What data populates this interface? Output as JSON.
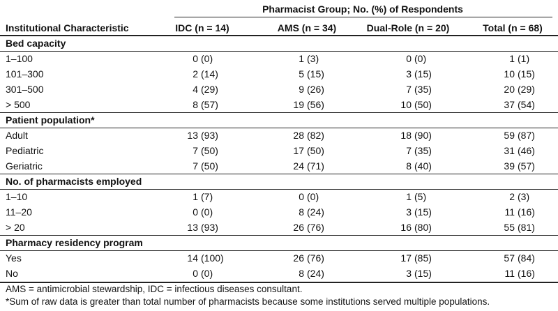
{
  "table": {
    "group_header": "Pharmacist Group; No. (%) of Respondents",
    "columns": [
      "Institutional Characteristic",
      "IDC (n = 14)",
      "AMS (n = 34)",
      "Dual-Role (n = 20)",
      "Total (n = 68)"
    ],
    "sections": [
      {
        "title": "Bed capacity",
        "rows": [
          {
            "label": "1–100",
            "cells": [
              [
                "0",
                "(0)"
              ],
              [
                "1",
                "(3)"
              ],
              [
                "0",
                "(0)"
              ],
              [
                "1",
                "(1)"
              ]
            ]
          },
          {
            "label": "101–300",
            "cells": [
              [
                "2",
                "(14)"
              ],
              [
                "5",
                "(15)"
              ],
              [
                "3",
                "(15)"
              ],
              [
                "10",
                "(15)"
              ]
            ]
          },
          {
            "label": "301–500",
            "cells": [
              [
                "4",
                "(29)"
              ],
              [
                "9",
                "(26)"
              ],
              [
                "7",
                "(35)"
              ],
              [
                "20",
                "(29)"
              ]
            ]
          },
          {
            "label": "> 500",
            "cells": [
              [
                "8",
                "(57)"
              ],
              [
                "19",
                "(56)"
              ],
              [
                "10",
                "(50)"
              ],
              [
                "37",
                "(54)"
              ]
            ]
          }
        ]
      },
      {
        "title": "Patient population*",
        "rows": [
          {
            "label": "Adult",
            "cells": [
              [
                "13",
                "(93)"
              ],
              [
                "28",
                "(82)"
              ],
              [
                "18",
                "(90)"
              ],
              [
                "59",
                "(87)"
              ]
            ]
          },
          {
            "label": "Pediatric",
            "cells": [
              [
                "7",
                "(50)"
              ],
              [
                "17",
                "(50)"
              ],
              [
                "7",
                "(35)"
              ],
              [
                "31",
                "(46)"
              ]
            ]
          },
          {
            "label": "Geriatric",
            "cells": [
              [
                "7",
                "(50)"
              ],
              [
                "24",
                "(71)"
              ],
              [
                "8",
                "(40)"
              ],
              [
                "39",
                "(57)"
              ]
            ]
          }
        ]
      },
      {
        "title": "No. of pharmacists employed",
        "rows": [
          {
            "label": "1–10",
            "cells": [
              [
                "1",
                "(7)"
              ],
              [
                "0",
                "(0)"
              ],
              [
                "1",
                "(5)"
              ],
              [
                "2",
                "(3)"
              ]
            ]
          },
          {
            "label": "11–20",
            "cells": [
              [
                "0",
                "(0)"
              ],
              [
                "8",
                "(24)"
              ],
              [
                "3",
                "(15)"
              ],
              [
                "11",
                "(16)"
              ]
            ]
          },
          {
            "label": "> 20",
            "cells": [
              [
                "13",
                "(93)"
              ],
              [
                "26",
                "(76)"
              ],
              [
                "16",
                "(80)"
              ],
              [
                "55",
                "(81)"
              ]
            ]
          }
        ]
      },
      {
        "title": "Pharmacy residency program",
        "rows": [
          {
            "label": "Yes",
            "cells": [
              [
                "14",
                "(100)"
              ],
              [
                "26",
                "(76)"
              ],
              [
                "17",
                "(85)"
              ],
              [
                "57",
                "(84)"
              ]
            ]
          },
          {
            "label": "No",
            "cells": [
              [
                "0",
                "(0)"
              ],
              [
                "8",
                "(24)"
              ],
              [
                "3",
                "(15)"
              ],
              [
                "11",
                "(16)"
              ]
            ]
          }
        ]
      }
    ]
  },
  "footnotes": [
    "AMS = antimicrobial stewardship, IDC = infectious diseases consultant.",
    "*Sum of raw data is greater than total number of pharmacists because some institutions served multiple populations."
  ]
}
